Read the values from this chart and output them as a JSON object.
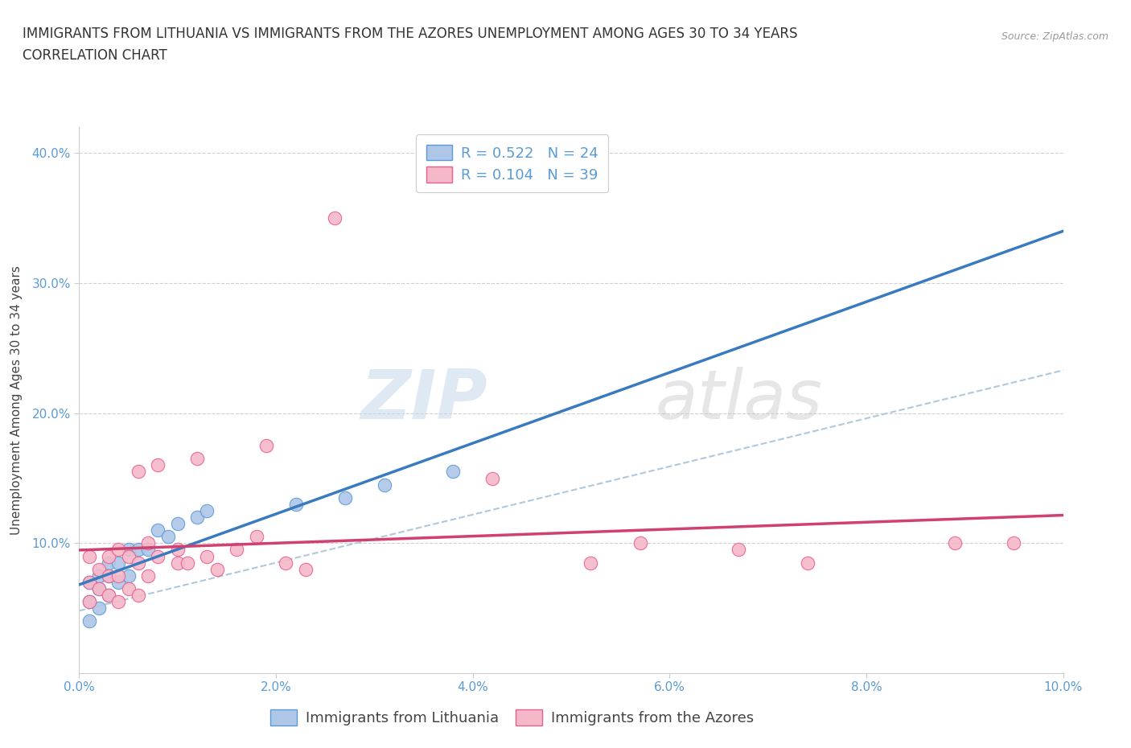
{
  "title_line1": "IMMIGRANTS FROM LITHUANIA VS IMMIGRANTS FROM THE AZORES UNEMPLOYMENT AMONG AGES 30 TO 34 YEARS",
  "title_line2": "CORRELATION CHART",
  "source_text": "Source: ZipAtlas.com",
  "ylabel": "Unemployment Among Ages 30 to 34 years",
  "watermark_zip": "ZIP",
  "watermark_atlas": "atlas",
  "lithuania_R": 0.522,
  "lithuania_N": 24,
  "azores_R": 0.104,
  "azores_N": 39,
  "lithuania_color": "#aec6e8",
  "azores_color": "#f5b8c8",
  "lithuania_edge_color": "#5b9bd5",
  "azores_edge_color": "#e86090",
  "lithuania_line_color": "#3a7abf",
  "azores_line_color": "#d04070",
  "dash_line_color": "#b0c8dc",
  "xlim": [
    0.0,
    0.1
  ],
  "ylim": [
    0.0,
    0.42
  ],
  "xtick_labels": [
    "0.0%",
    "2.0%",
    "4.0%",
    "6.0%",
    "8.0%",
    "10.0%"
  ],
  "xtick_values": [
    0.0,
    0.02,
    0.04,
    0.06,
    0.08,
    0.1
  ],
  "ytick_labels": [
    "10.0%",
    "20.0%",
    "30.0%",
    "40.0%"
  ],
  "ytick_values": [
    0.1,
    0.2,
    0.3,
    0.4
  ],
  "lithuania_x": [
    0.001,
    0.001,
    0.001,
    0.002,
    0.002,
    0.002,
    0.003,
    0.003,
    0.003,
    0.004,
    0.004,
    0.005,
    0.005,
    0.006,
    0.007,
    0.008,
    0.009,
    0.01,
    0.012,
    0.013,
    0.022,
    0.027,
    0.031,
    0.038
  ],
  "lithuania_y": [
    0.04,
    0.055,
    0.07,
    0.05,
    0.065,
    0.075,
    0.06,
    0.075,
    0.085,
    0.07,
    0.085,
    0.075,
    0.095,
    0.095,
    0.095,
    0.11,
    0.105,
    0.115,
    0.12,
    0.125,
    0.13,
    0.135,
    0.145,
    0.155
  ],
  "azores_x": [
    0.001,
    0.001,
    0.001,
    0.002,
    0.002,
    0.003,
    0.003,
    0.003,
    0.004,
    0.004,
    0.004,
    0.005,
    0.005,
    0.006,
    0.006,
    0.006,
    0.007,
    0.007,
    0.008,
    0.008,
    0.01,
    0.01,
    0.011,
    0.012,
    0.013,
    0.014,
    0.016,
    0.018,
    0.019,
    0.021,
    0.023,
    0.026,
    0.042,
    0.052,
    0.057,
    0.067,
    0.074,
    0.089,
    0.095
  ],
  "azores_y": [
    0.055,
    0.07,
    0.09,
    0.065,
    0.08,
    0.06,
    0.075,
    0.09,
    0.055,
    0.075,
    0.095,
    0.065,
    0.09,
    0.06,
    0.085,
    0.155,
    0.075,
    0.1,
    0.09,
    0.16,
    0.085,
    0.095,
    0.085,
    0.165,
    0.09,
    0.08,
    0.095,
    0.105,
    0.175,
    0.085,
    0.08,
    0.35,
    0.15,
    0.085,
    0.1,
    0.095,
    0.085,
    0.1,
    0.1
  ],
  "grid_color": "#d0d0d0",
  "background_color": "#ffffff",
  "legend_fontsize": 13,
  "title_fontsize": 12,
  "axis_label_fontsize": 11,
  "tick_fontsize": 11,
  "tick_color": "#5b9bd5"
}
